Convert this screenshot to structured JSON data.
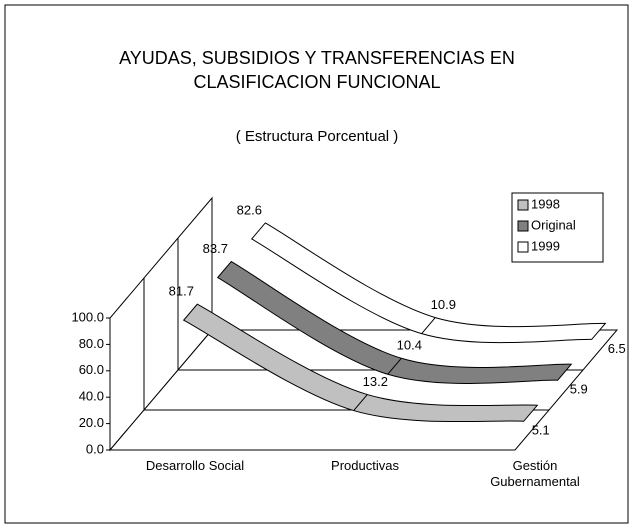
{
  "chart_data": {
    "type": "line3d",
    "title": "AYUDAS, SUBSIDIOS Y TRANSFERENCIAS EN CLASIFICACION FUNCIONAL",
    "subtitle": "( Estructura Porcentual )",
    "categories": [
      "Desarrollo Social",
      "Productivas",
      "Gestión Gubernamental"
    ],
    "series": [
      {
        "name": "1998",
        "color": "#c0c0c0",
        "values": [
          81.7,
          13.2,
          5.1
        ]
      },
      {
        "name": "Original",
        "color": "#808080",
        "values": [
          83.7,
          10.4,
          5.9
        ]
      },
      {
        "name": "1999",
        "color": "#ffffff",
        "values": [
          82.6,
          10.9,
          6.5
        ]
      }
    ],
    "ylim": [
      0,
      100
    ],
    "yticks": [
      {
        "value": 0,
        "label": "0.0"
      },
      {
        "value": 20,
        "label": "20.0"
      },
      {
        "value": 40,
        "label": "40.0"
      },
      {
        "value": 60,
        "label": "60.0"
      },
      {
        "value": 80,
        "label": "80.0"
      },
      {
        "value": 100,
        "label": "100.0"
      }
    ],
    "legend": "upper right"
  }
}
